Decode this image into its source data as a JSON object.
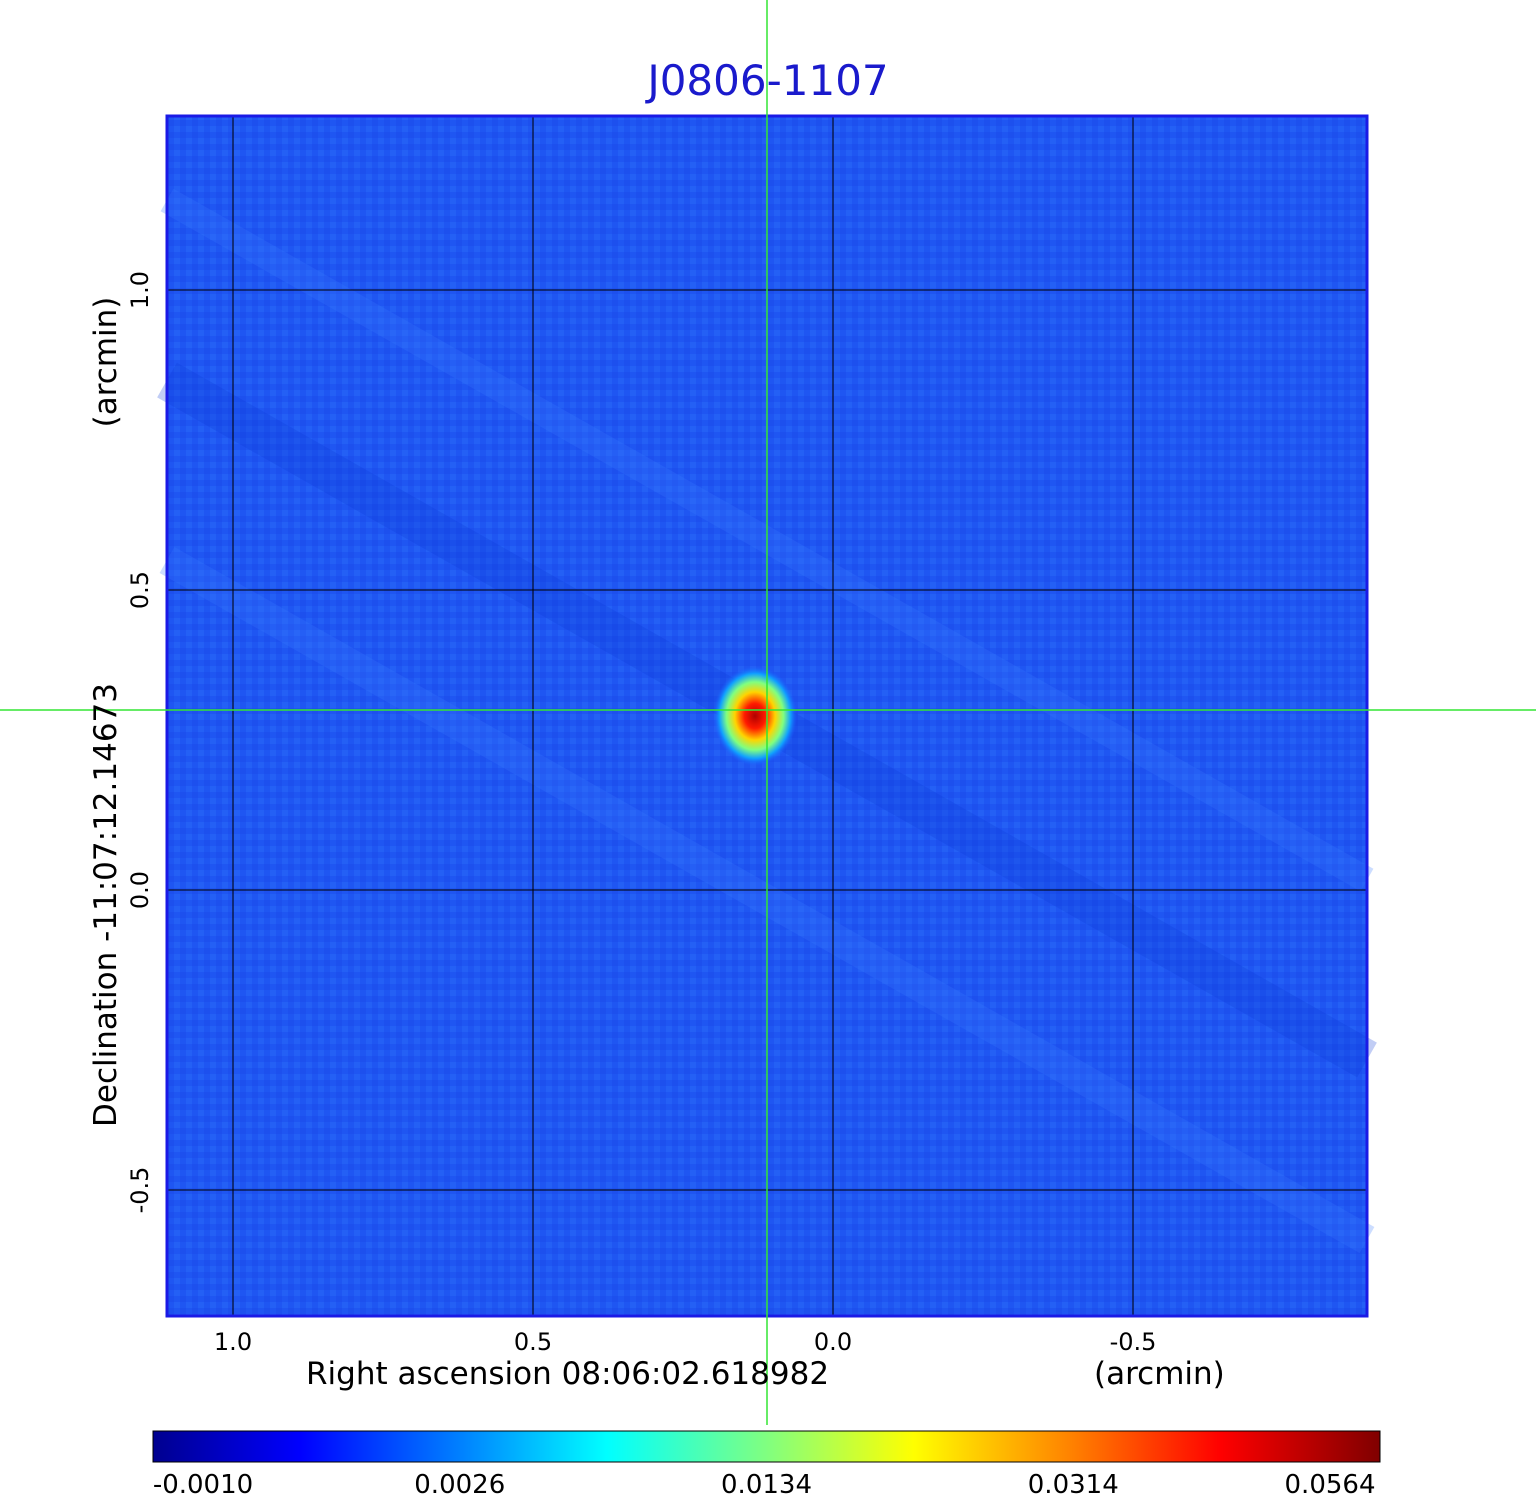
{
  "title": "J0806-1107",
  "image": {
    "colormap": "jet",
    "source_peak": {
      "x_arcmin": 0.13,
      "y_arcmin": 0.29
    },
    "crosshair": {
      "x_arcmin": 0.11,
      "y_arcmin": 0.3,
      "color": "#33e633"
    },
    "frame_color": "#1a1ae6",
    "grid_color": "#000000"
  },
  "x_axis": {
    "label": "Right ascension  08:06:02.618982",
    "unit": "(arcmin)",
    "range": [
      1.11,
      -0.89
    ],
    "ticks": [
      {
        "value": 1.0,
        "label": "1.0"
      },
      {
        "value": 0.5,
        "label": "0.5"
      },
      {
        "value": 0.0,
        "label": "0.0"
      },
      {
        "value": -0.5,
        "label": "-0.5"
      }
    ]
  },
  "y_axis": {
    "label": "Declination  -11:07:12.14673",
    "unit": "(arcmin)",
    "range": [
      -0.71,
      1.29
    ],
    "ticks": [
      {
        "value": 1.0,
        "label": "1.0"
      },
      {
        "value": 0.5,
        "label": "0.5"
      },
      {
        "value": 0.0,
        "label": "0.0"
      },
      {
        "value": -0.5,
        "label": "-0.5"
      }
    ]
  },
  "colorbar": {
    "labels": [
      "-0.0010",
      "0.0026",
      "0.0134",
      "0.0314",
      "0.0564"
    ]
  }
}
